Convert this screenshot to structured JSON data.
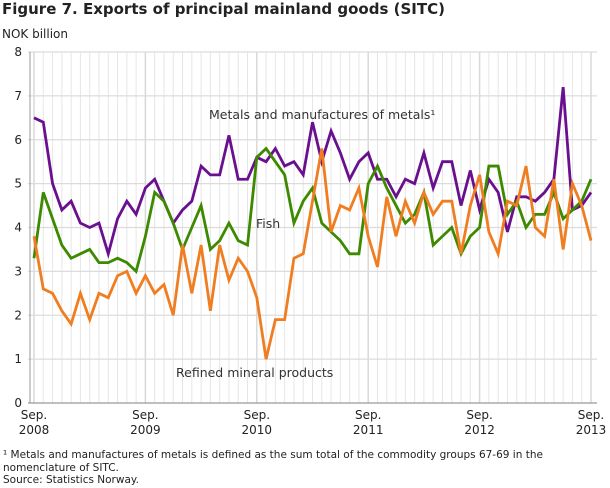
{
  "title": "Figure 7. Exports of principal mainland goods (SITC)",
  "footnote": "¹ Metals and manufactures of metals is defined as the sum total of the commodity groups 67-69 in the nomenclature of SITC.",
  "source": "Source: Statistics Norway.",
  "chart_data": {
    "type": "line",
    "title": "Figure 7. Exports of principal mainland goods (SITC)",
    "ylabel": "NOK billion",
    "xlabel": "",
    "ylim": [
      0,
      8
    ],
    "yticks": [
      "0",
      "1",
      "2",
      "3",
      "4",
      "5",
      "6",
      "7",
      "8"
    ],
    "xticks": [
      {
        "m": "Sep.",
        "y": "2008"
      },
      {
        "m": "Sep.",
        "y": "2009"
      },
      {
        "m": "Sep.",
        "y": "2010"
      },
      {
        "m": "Sep.",
        "y": "2011"
      },
      {
        "m": "Sep.",
        "y": "2012"
      },
      {
        "m": "Sep.",
        "y": "2013"
      }
    ],
    "x_range": "Sep. 2008 - Sep. 2013 (monthly)",
    "grid": true,
    "series": [
      {
        "name": "Metals and manufactures of metals¹",
        "color": "#6a0f8e",
        "values": [
          6.5,
          6.4,
          5.0,
          4.4,
          4.6,
          4.1,
          4.0,
          4.1,
          3.4,
          4.2,
          4.6,
          4.3,
          4.9,
          5.1,
          4.6,
          4.1,
          4.4,
          4.6,
          5.4,
          5.2,
          5.2,
          6.1,
          5.1,
          5.1,
          5.6,
          5.5,
          5.8,
          5.4,
          5.5,
          5.2,
          6.4,
          5.5,
          6.2,
          5.7,
          5.1,
          5.5,
          5.7,
          5.1,
          5.1,
          4.7,
          5.1,
          5.0,
          5.7,
          4.9,
          5.5,
          5.5,
          4.5,
          5.3,
          4.4,
          5.1,
          4.8,
          3.9,
          4.7,
          4.7,
          4.6,
          4.8,
          5.1,
          7.2,
          4.4,
          4.5,
          4.8
        ]
      },
      {
        "name": "Fish",
        "color": "#3d8a00",
        "values": [
          3.3,
          4.8,
          4.2,
          3.6,
          3.3,
          3.4,
          3.5,
          3.2,
          3.2,
          3.3,
          3.2,
          3.0,
          3.8,
          4.8,
          4.6,
          4.1,
          3.5,
          4.0,
          4.5,
          3.5,
          3.7,
          4.1,
          3.7,
          3.6,
          5.6,
          5.8,
          5.5,
          5.2,
          4.1,
          4.6,
          4.9,
          4.1,
          3.9,
          3.7,
          3.4,
          3.4,
          5.0,
          5.4,
          4.9,
          4.5,
          4.1,
          4.3,
          4.8,
          3.6,
          3.8,
          4.0,
          3.4,
          3.8,
          4.0,
          5.4,
          5.4,
          4.3,
          4.6,
          4.0,
          4.3,
          4.3,
          4.8,
          4.2,
          4.4,
          4.6,
          5.1
        ]
      },
      {
        "name": "Refined mineral products",
        "color": "#f07d20",
        "values": [
          3.8,
          2.6,
          2.5,
          2.1,
          1.8,
          2.5,
          1.9,
          2.5,
          2.4,
          2.9,
          3.0,
          2.5,
          2.9,
          2.5,
          2.7,
          2.0,
          3.6,
          2.5,
          3.6,
          2.1,
          3.6,
          2.8,
          3.3,
          3.0,
          2.4,
          1.0,
          1.9,
          1.9,
          3.3,
          3.4,
          4.6,
          5.8,
          3.9,
          4.5,
          4.4,
          4.9,
          3.8,
          3.1,
          4.7,
          3.8,
          4.6,
          4.1,
          4.8,
          4.3,
          4.6,
          4.6,
          3.4,
          4.5,
          5.2,
          3.9,
          3.4,
          4.6,
          4.5,
          5.4,
          4.0,
          3.8,
          5.1,
          3.5,
          5.0,
          4.5,
          3.7
        ]
      }
    ]
  }
}
